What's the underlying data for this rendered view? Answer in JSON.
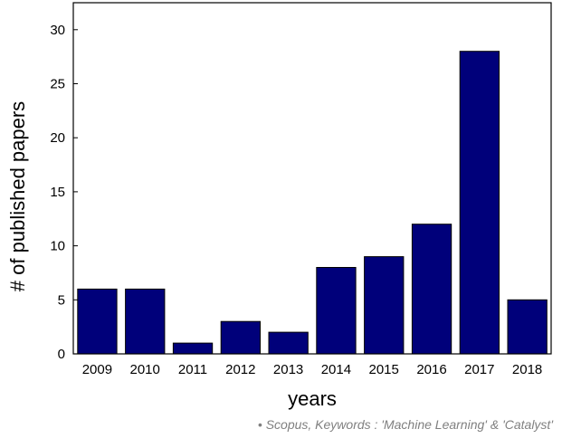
{
  "chart_data": {
    "type": "bar",
    "categories": [
      "2009",
      "2010",
      "2011",
      "2012",
      "2013",
      "2014",
      "2015",
      "2016",
      "2017",
      "2018"
    ],
    "values": [
      6,
      6,
      1,
      3,
      2,
      8,
      9,
      12,
      28,
      5
    ],
    "xlabel": "years",
    "ylabel": "# of published papers",
    "ylim": [
      0,
      32.5
    ],
    "yticks": [
      "0",
      "5",
      "10",
      "15",
      "20",
      "25",
      "30"
    ],
    "bar_color": "#00007a",
    "grid": false,
    "legend": "none"
  },
  "note": "• Scopus, Keywords : 'Machine Learning' & 'Catalyst'"
}
